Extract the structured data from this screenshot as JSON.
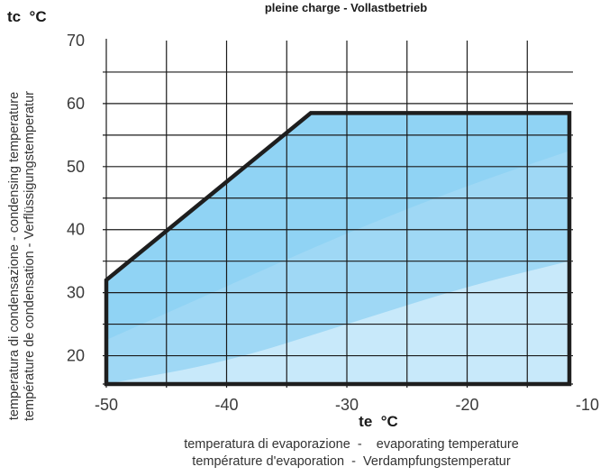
{
  "chart_data": {
    "type": "area",
    "title": "pleine charge - Vollastbetrieb",
    "x_unit": "te  °C",
    "y_unit": "tc  °C",
    "xlabel_lines": [
      "temperatura di evaporazione  -    evaporating temperature",
      "température d'evaporation  -  Verdampfungstemperatur"
    ],
    "ylabel_lines": [
      "temperatura di condensazione - condensing temperature",
      "température de condensation - Verflüssigungstemperatur"
    ],
    "xlim": [
      -50,
      -10
    ],
    "ylim": [
      15,
      70
    ],
    "xticks": [
      -50,
      -40,
      -30,
      -20,
      -10
    ],
    "yticks": [
      20,
      30,
      40,
      50,
      60,
      70
    ],
    "grid": true,
    "envelope": {
      "x": [
        -50,
        -50,
        -33,
        -11.5,
        -11.5
      ],
      "y": [
        15.5,
        32,
        58.5,
        58.5,
        15.5
      ]
    },
    "bands": [
      {
        "x": [
          -50,
          -40,
          -30,
          -20,
          -11.5
        ],
        "y": [
          22.5,
          31,
          39.5,
          47,
          52.5
        ],
        "color": "#9fd8f5"
      },
      {
        "x": [
          -50,
          -40,
          -30,
          -20,
          -11.5
        ],
        "y": [
          15.5,
          19,
          25,
          31,
          35
        ],
        "color": "#c8e9fa"
      }
    ],
    "fill_color": "#ffffff",
    "outline_color": "#1e1e1e"
  }
}
